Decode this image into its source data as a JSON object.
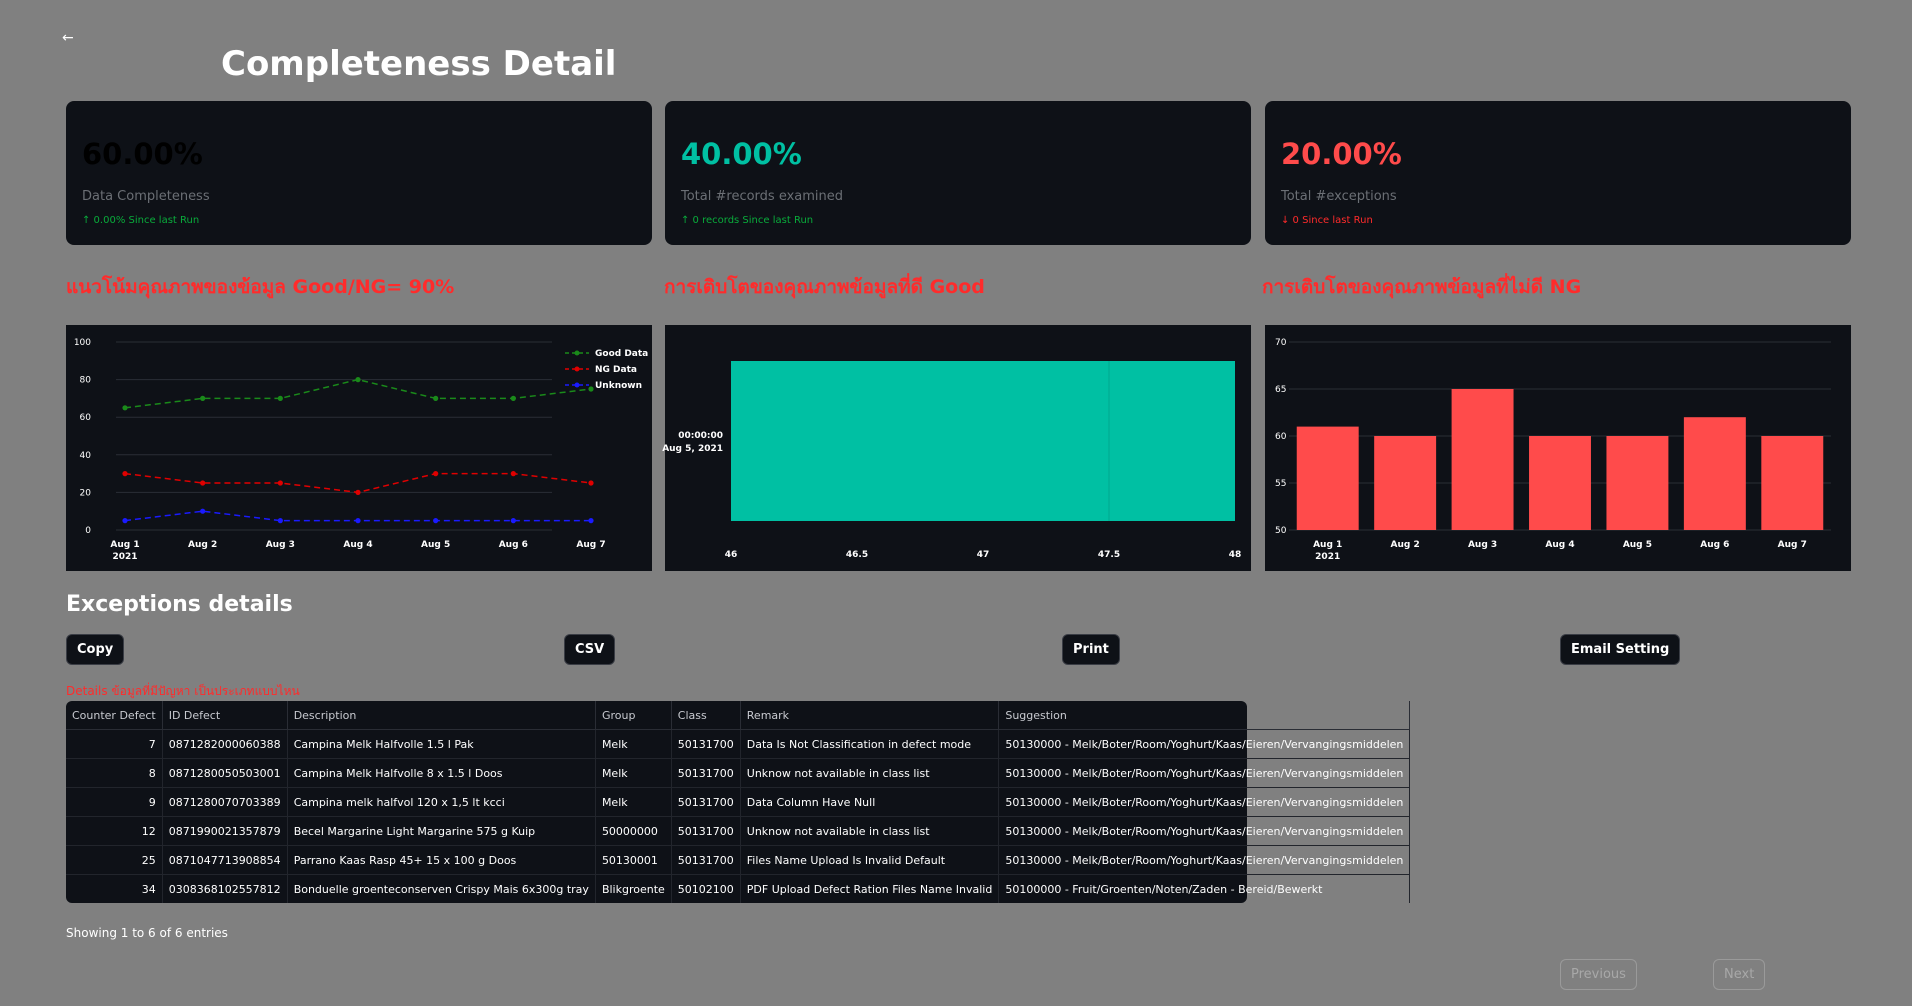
{
  "nav": {
    "back_icon": "←"
  },
  "page": {
    "title": "Completeness Detail"
  },
  "kpis": [
    {
      "value": "60.00%",
      "label": "Data Completeness",
      "delta": "↑ 0.00% Since last Run",
      "value_color": "#000000",
      "delta_color": "#09ab3b"
    },
    {
      "value": "40.00%",
      "label": "Total #records examined",
      "delta": "↑ 0 records Since last Run",
      "value_color": "#00c0a3",
      "delta_color": "#09ab3b"
    },
    {
      "value": "20.00%",
      "label": "Total #exceptions",
      "delta": "↓ 0 Since last Run",
      "value_color": "#ff4b4b",
      "delta_color": "#ff2b2b"
    }
  ],
  "sections": {
    "trend_title": "แนวโน้มคุณภาพของข้อมูล Good/NG= 90%",
    "good_title": "การเติบโตของคุณภาพข้อมูลที่ดี Good",
    "ng_title": "การเติบโตของคุณภาพข้อมูลที่ไม่ดี NG"
  },
  "chart_data": [
    {
      "type": "line",
      "x": [
        "Aug 1",
        "Aug 2",
        "Aug 3",
        "Aug 4",
        "Aug 5",
        "Aug 6",
        "Aug 7"
      ],
      "x_year_label": "2021",
      "series": [
        {
          "name": "Good Data",
          "values": [
            65,
            70,
            70,
            80,
            70,
            70,
            75
          ],
          "color": "#1a8a1a"
        },
        {
          "name": "NG Data",
          "values": [
            30,
            25,
            25,
            20,
            30,
            30,
            25
          ],
          "color": "#e00000"
        },
        {
          "name": "Unknown",
          "values": [
            5,
            10,
            5,
            5,
            5,
            5,
            5
          ],
          "color": "#1a1aff"
        }
      ],
      "ylim": [
        0,
        100
      ],
      "yticks": [
        "0",
        "20",
        "40",
        "60",
        "80",
        "100"
      ],
      "legend": "top-right",
      "grid": true
    },
    {
      "type": "bar",
      "orientation": "horizontal",
      "categories": [
        "00:00:00",
        "Aug 5, 2021"
      ],
      "x_start": 46,
      "x_end": 48,
      "xticks": [
        "46",
        "46.5",
        "47",
        "47.5",
        "48"
      ],
      "color": "#00c0a3"
    },
    {
      "type": "bar",
      "categories": [
        "Aug 1",
        "Aug 2",
        "Aug 3",
        "Aug 4",
        "Aug 5",
        "Aug 6",
        "Aug 7"
      ],
      "x_year_label": "2021",
      "values": [
        61,
        60,
        65,
        60,
        60,
        62,
        60
      ],
      "ylim": [
        50,
        70
      ],
      "yticks": [
        "50",
        "55",
        "60",
        "65",
        "70"
      ],
      "color": "#ff4b4b",
      "grid": true
    }
  ],
  "exceptions": {
    "title": "Exceptions details",
    "buttons": {
      "copy": "Copy",
      "csv": "CSV",
      "print": "Print",
      "email": "Email Setting"
    },
    "caption": "Details ข้อมูลที่มีปัญหา เป็นประเภทแบบไหน",
    "columns": [
      "Counter Defect",
      "ID Defect",
      "Description",
      "Group",
      "Class",
      "Remark",
      "Suggestion"
    ],
    "rows": [
      [
        "7",
        "0871282000060388",
        "Campina Melk Halfvolle 1.5 l Pak",
        "Melk",
        "50131700",
        "Data Is Not Classification in defect mode",
        "50130000 - Melk/Boter/Room/Yoghurt/Kaas/Eieren/Vervangingsmiddelen"
      ],
      [
        "8",
        "0871280050503001",
        "Campina Melk Halfvolle 8 x 1.5 l Doos",
        "Melk",
        "50131700",
        "Unknow not available in class list",
        "50130000 - Melk/Boter/Room/Yoghurt/Kaas/Eieren/Vervangingsmiddelen"
      ],
      [
        "9",
        "0871280070703389",
        "Campina melk halfvol 120 x 1,5 lt kcci",
        "Melk",
        "50131700",
        "Data Column Have Null",
        "50130000 - Melk/Boter/Room/Yoghurt/Kaas/Eieren/Vervangingsmiddelen"
      ],
      [
        "12",
        "0871990021357879",
        "Becel Margarine Light Margarine 575 g Kuip",
        "50000000",
        "50131700",
        "Unknow not available in class list",
        "50130000 - Melk/Boter/Room/Yoghurt/Kaas/Eieren/Vervangingsmiddelen"
      ],
      [
        "25",
        "0871047713908854",
        "Parrano Kaas Rasp 45+ 15 x 100 g Doos",
        "50130001",
        "50131700",
        "Files Name Upload Is Invalid Default",
        "50130000 - Melk/Boter/Room/Yoghurt/Kaas/Eieren/Vervangingsmiddelen"
      ],
      [
        "34",
        "0308368102557812",
        "Bonduelle groenteconserven Crispy Mais 6x300g tray",
        "Blikgroente",
        "50102100",
        "PDF Upload Defect Ration Files Name Invalid",
        "50100000 - Fruit/Groenten/Noten/Zaden - Bereid/Bewerkt"
      ]
    ],
    "showing": "Showing 1 to 6 of 6 entries",
    "pagination": {
      "previous": "Previous",
      "next": "Next"
    }
  }
}
